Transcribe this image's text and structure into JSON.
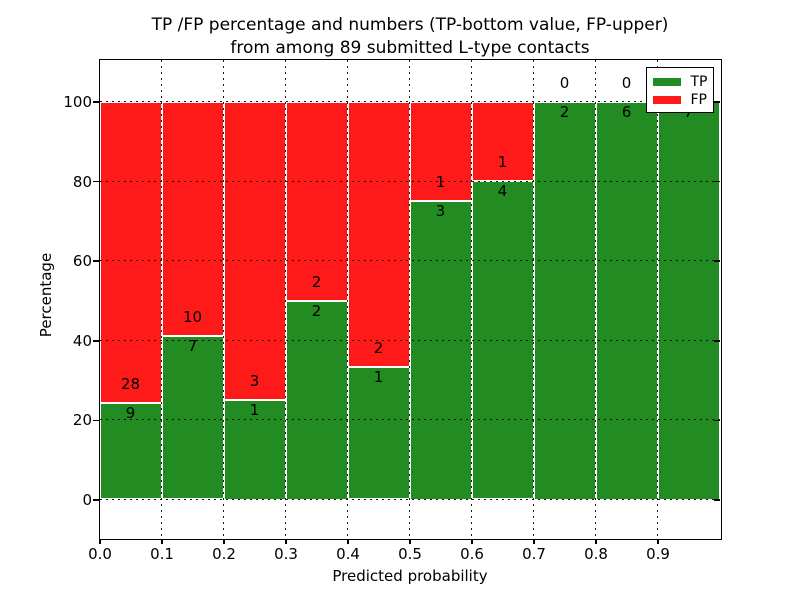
{
  "title": {
    "line1": "TP /FP percentage and numbers (TP-bottom value, FP-upper)",
    "line2": "from among 89 submitted L-type contacts"
  },
  "axes": {
    "ylabel": "Percentage",
    "xlabel": "Predicted probability",
    "ytick_labels": [
      "0",
      "20",
      "40",
      "60",
      "80",
      "100"
    ],
    "xtick_labels": [
      "0.0",
      "0.1",
      "0.2",
      "0.3",
      "0.4",
      "0.5",
      "0.6",
      "0.7",
      "0.8",
      "0.9"
    ]
  },
  "legend": {
    "entries": [
      {
        "label": "TP",
        "color": "#228B22"
      },
      {
        "label": "FP",
        "color": "#FF1A1A"
      }
    ],
    "position": "upper-right"
  },
  "colors": {
    "tp_green": "#228B22",
    "fp_red": "#FF1A1A",
    "bar_edge": "#ffffff",
    "grid": "#000000"
  },
  "chart_data": {
    "type": "bar",
    "stacked": true,
    "normalized": "each bin scaled to 100%",
    "title": "TP /FP percentage and numbers (TP-bottom value, FP-upper) from among 89 submitted L-type contacts",
    "xlabel": "Predicted probability",
    "ylabel": "Percentage",
    "bin_width": 0.1,
    "categories": [
      "0.0",
      "0.1",
      "0.2",
      "0.3",
      "0.4",
      "0.5",
      "0.6",
      "0.7",
      "0.8",
      "0.9"
    ],
    "series": [
      {
        "name": "TP",
        "color": "#228B22",
        "counts": [
          9,
          7,
          1,
          2,
          1,
          3,
          4,
          2,
          6,
          7
        ]
      },
      {
        "name": "FP",
        "color": "#FF1A1A",
        "counts": [
          28,
          10,
          3,
          2,
          2,
          1,
          1,
          0,
          0,
          0
        ]
      }
    ],
    "tp_percent": [
      24.3,
      41.2,
      25.0,
      50.0,
      33.3,
      75.0,
      80.0,
      100.0,
      100.0,
      100.0
    ],
    "total_contacts": 89,
    "yticks": [
      0,
      20,
      40,
      60,
      80,
      100
    ],
    "ylim": [
      -10.5,
      110.5
    ],
    "xlim": [
      0.0,
      1.0
    ],
    "grid": "dotted, drawn above bars",
    "legend_position": "upper right"
  }
}
